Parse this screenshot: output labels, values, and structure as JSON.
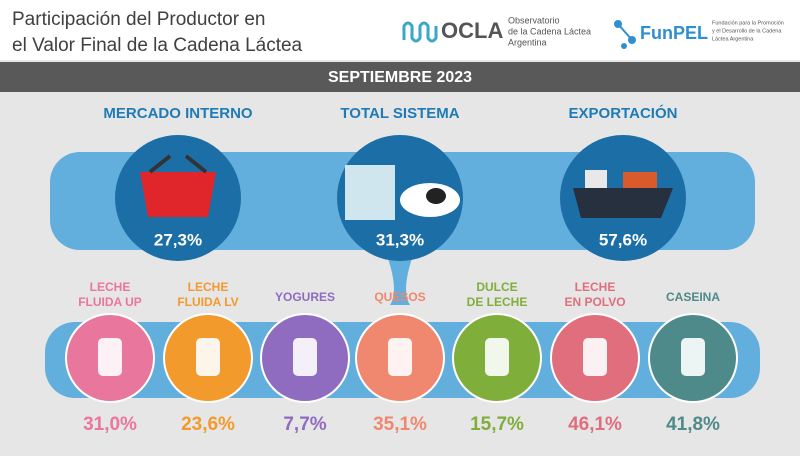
{
  "header": {
    "title_lines": [
      "Participación del Productor en",
      "el Valor Final de la Cadena Láctea"
    ],
    "ocla": {
      "name": "OCLA",
      "lines": [
        "Observatorio",
        "de la Cadena Láctea",
        "Argentina"
      ]
    },
    "funpel": {
      "name": "FunPEL",
      "lines": [
        "Fundación para la Promoción",
        "y el Desarrollo de la Cadena",
        "Láctea Argentina"
      ]
    }
  },
  "period": "SEPTIEMBRE 2023",
  "markets": [
    {
      "label": "MERCADO INTERNO",
      "value": "27,3%"
    },
    {
      "label": "TOTAL SISTEMA",
      "value": "31,3%"
    },
    {
      "label": "EXPORTACIÓN",
      "value": "57,6%"
    }
  ],
  "products": [
    {
      "label": [
        "LECHE",
        "FLUIDA UP"
      ],
      "value": "31,0%",
      "color": "#e9769c"
    },
    {
      "label": [
        "LECHE",
        "FLUIDA LV"
      ],
      "value": "23,6%",
      "color": "#f39a2c"
    },
    {
      "label": [
        "YOGURES"
      ],
      "value": "7,7%",
      "color": "#8f6cc0"
    },
    {
      "label": [
        "QUESOS"
      ],
      "value": "35,1%",
      "color": "#f0876f"
    },
    {
      "label": [
        "DULCE",
        "DE LECHE"
      ],
      "value": "15,7%",
      "color": "#7fae3a"
    },
    {
      "label": [
        "LECHE",
        "EN POLVO"
      ],
      "value": "46,1%",
      "color": "#e06e7d"
    },
    {
      "label": [
        "CASEINA"
      ],
      "value": "41,8%",
      "color": "#4e8a8a"
    }
  ]
}
